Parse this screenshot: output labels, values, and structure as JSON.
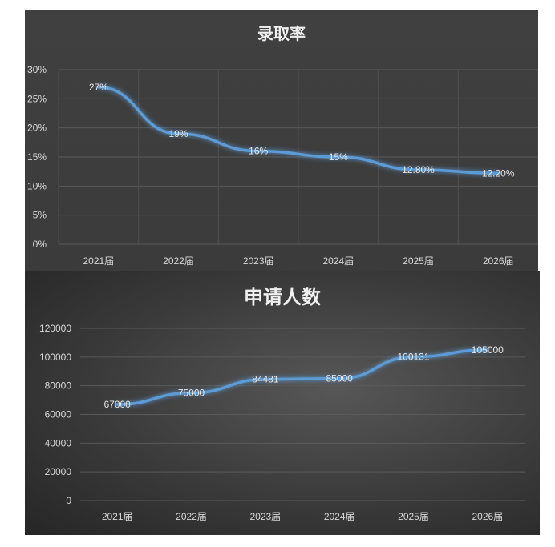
{
  "chart_data": [
    {
      "type": "line",
      "title": "录取率",
      "categories": [
        "2021届",
        "2022届",
        "2023届",
        "2024届",
        "2025届",
        "2026届"
      ],
      "series": [
        {
          "values": [
            27,
            19,
            16,
            15,
            12.8,
            12.2
          ],
          "labels": [
            "27%",
            "19%",
            "16%",
            "15%",
            "12.80%",
            "12.20%"
          ]
        }
      ],
      "yticks": [
        "0%",
        "5%",
        "10%",
        "15%",
        "20%",
        "25%",
        "30%"
      ],
      "ylim": [
        0,
        30
      ],
      "grid": "both",
      "line_color": "#5b9bd5",
      "background": "#3d3d3d"
    },
    {
      "type": "line",
      "title": "申请人数",
      "categories": [
        "2021届",
        "2022届",
        "2023届",
        "2024届",
        "2025届",
        "2026届"
      ],
      "series": [
        {
          "values": [
            67000,
            75000,
            84481,
            85000,
            100131,
            105000
          ],
          "labels": [
            "67000",
            "75000",
            "84481",
            "85000",
            "100131",
            "105000"
          ]
        }
      ],
      "yticks": [
        "0",
        "20000",
        "40000",
        "60000",
        "80000",
        "100000",
        "120000"
      ],
      "ylim": [
        0,
        120000
      ],
      "grid": "horizontal",
      "line_color": "#5b9bd5",
      "background": "#3a3a3a"
    }
  ]
}
